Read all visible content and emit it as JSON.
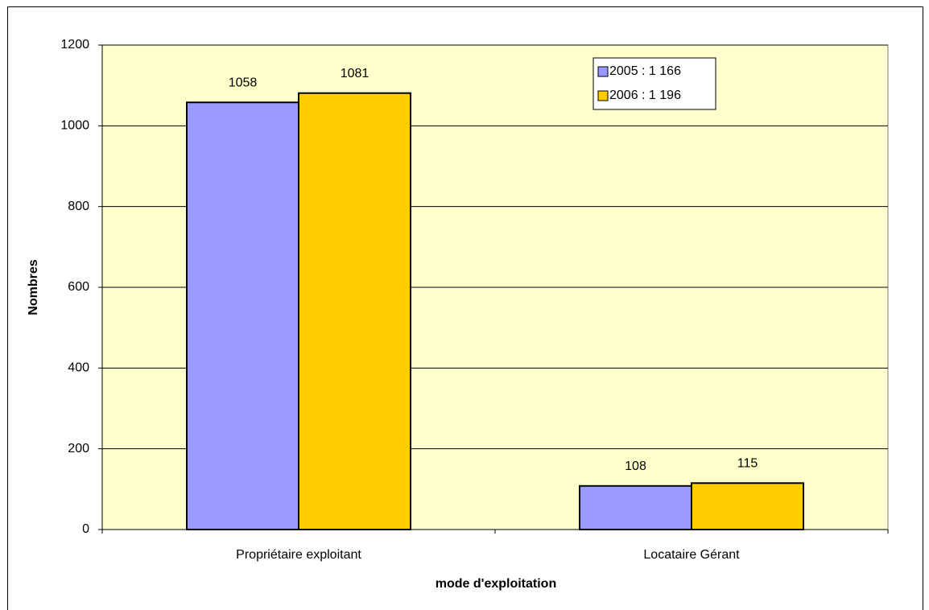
{
  "chart_data": {
    "type": "bar",
    "x_label": "mode d'exploitation",
    "y_label": "Nombres",
    "categories": [
      "Propriétaire exploitant",
      "Locataire Gérant"
    ],
    "series": [
      {
        "name": "2005 : 1 166",
        "color": "#9999ff",
        "values": [
          1058,
          108
        ]
      },
      {
        "name": "2006 : 1 196",
        "color": "#ffcc00",
        "values": [
          1081,
          115
        ]
      }
    ],
    "ylim": [
      0,
      1200
    ],
    "yticks": [
      0,
      200,
      400,
      600,
      800,
      1000,
      1200
    ],
    "grid": true,
    "legend": "top-right",
    "legend_text_color": "#ff0000",
    "plot_background": "#ffffcc"
  }
}
